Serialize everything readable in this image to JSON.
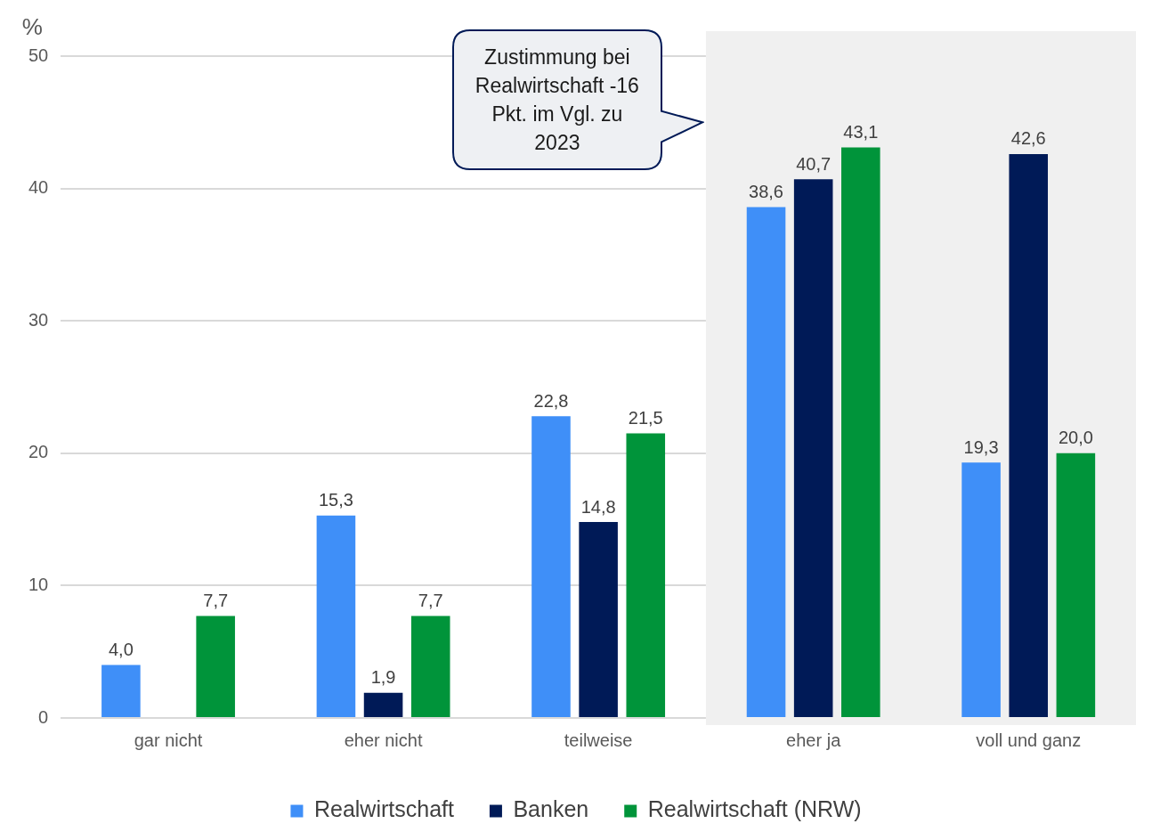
{
  "chart_data": {
    "type": "bar",
    "ylabel": "%",
    "categories": [
      "gar nicht",
      "eher nicht",
      "teilweise",
      "eher ja",
      "voll und ganz"
    ],
    "series": [
      {
        "name": "Realwirtschaft",
        "color": "#3f8ff8",
        "values": [
          4.0,
          15.3,
          22.8,
          38.6,
          19.3
        ],
        "value_labels": [
          "4,0",
          "15,3",
          "22,8",
          "38,6",
          "19,3"
        ]
      },
      {
        "name": "Banken",
        "color": "#001a57",
        "values": [
          null,
          1.9,
          14.8,
          40.7,
          42.6
        ],
        "value_labels": [
          null,
          "1,9",
          "14,8",
          "40,7",
          "42,6"
        ]
      },
      {
        "name": "Realwirtschaft (NRW)",
        "color": "#00943a",
        "values": [
          7.7,
          7.7,
          21.5,
          43.1,
          20.0
        ],
        "value_labels": [
          "7,7",
          "7,7",
          "21,5",
          "43,1",
          "20,0"
        ]
      }
    ],
    "ylim": [
      0,
      50
    ],
    "yticks": [
      0,
      10,
      20,
      30,
      40,
      50
    ],
    "grid": "y",
    "legend": "bottom",
    "bands": [
      {
        "axis": "x",
        "from": "eher ja",
        "to": "voll und ganz",
        "color": "#f0f0f0"
      }
    ],
    "annotations": [
      "Zustimmung bei Realwirtschaft -16 Pkt. im Vgl. zu 2023"
    ]
  }
}
